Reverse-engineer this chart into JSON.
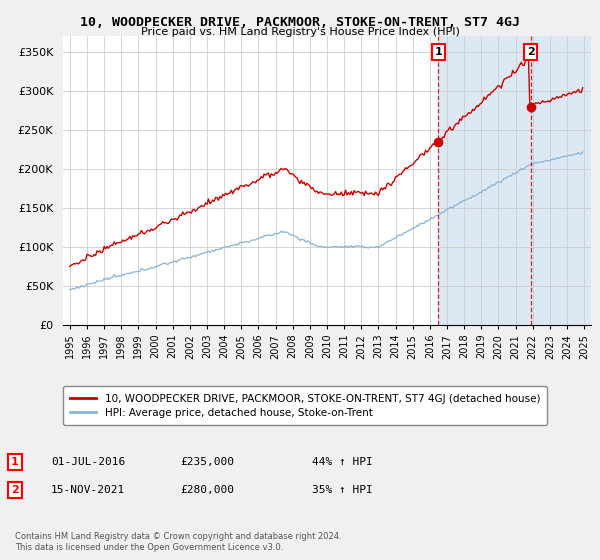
{
  "title": "10, WOODPECKER DRIVE, PACKMOOR, STOKE-ON-TRENT, ST7 4GJ",
  "subtitle": "Price paid vs. HM Land Registry's House Price Index (HPI)",
  "ylim": [
    0,
    370000
  ],
  "yticks": [
    0,
    50000,
    100000,
    150000,
    200000,
    250000,
    300000,
    350000
  ],
  "ytick_labels": [
    "£0",
    "£50K",
    "£100K",
    "£150K",
    "£200K",
    "£250K",
    "£300K",
    "£350K"
  ],
  "sale1_date": 2016.5,
  "sale1_price": 235000,
  "sale1_label": "1",
  "sale2_date": 2021.875,
  "sale2_price": 280000,
  "sale2_label": "2",
  "hpi_color": "#8ab4d4",
  "price_color": "#cc0000",
  "vline_color": "#cc0000",
  "highlight_bg": "#dce9f5",
  "legend_price_label": "10, WOODPECKER DRIVE, PACKMOOR, STOKE-ON-TRENT, ST7 4GJ (detached house)",
  "legend_hpi_label": "HPI: Average price, detached house, Stoke-on-Trent",
  "footer": "Contains HM Land Registry data © Crown copyright and database right 2024.\nThis data is licensed under the Open Government Licence v3.0.",
  "background_color": "#f0f0f0",
  "plot_bg_color": "#ffffff",
  "seed": 12345
}
